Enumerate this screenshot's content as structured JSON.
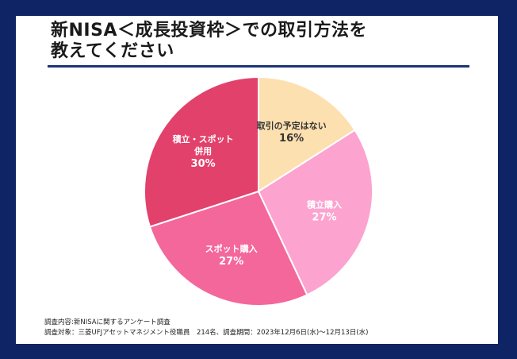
{
  "title_line1": "新NISA＜成長投資枠＞での取引方法を",
  "title_line2": "教えてください",
  "chart_data": {
    "type": "pie",
    "slices": [
      {
        "label": "取引の予定はない",
        "value": 16,
        "value_label": "16%",
        "color": "#fde0b0",
        "text_color": "#333333"
      },
      {
        "label": "積立購入",
        "value": 27,
        "value_label": "27%",
        "color": "#fca3cf",
        "text_color": "#ffffff"
      },
      {
        "label": "スポット購入",
        "value": 27,
        "value_label": "27%",
        "color": "#f4679b",
        "text_color": "#ffffff"
      },
      {
        "label": "積立・スポット併用",
        "label_lines": [
          "積立・スポット",
          "併用"
        ],
        "value": 30,
        "value_label": "30%",
        "color": "#e2416b",
        "text_color": "#ffffff"
      }
    ]
  },
  "footer": {
    "line1": "調査内容:新NISAに関するアンケート調査",
    "line2": "調査対象：三菱UFJアセットマネジメント役職員　214名、調査期間：2023年12月6日(水)～12月13日(水)"
  }
}
